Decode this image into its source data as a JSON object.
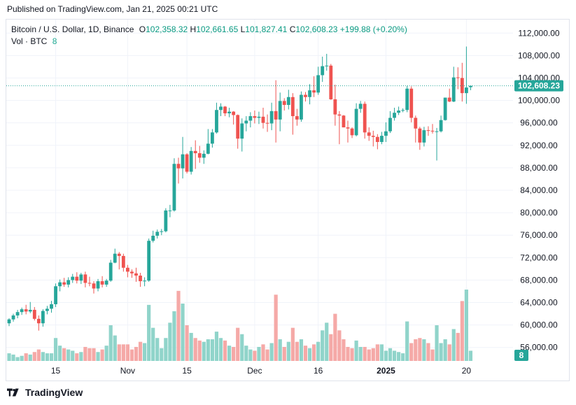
{
  "header": {
    "published": "Published on TradingView.com, Jan 21, 2025 00:21 UTC"
  },
  "legend": {
    "symbol": "Bitcoin / U.S. Dollar, 1D, Binance",
    "o_label": "O",
    "o": "102,358.32",
    "h_label": "H",
    "h": "102,661.65",
    "l_label": "L",
    "l": "101,827.41",
    "c_label": "C",
    "c": "102,608.23",
    "change": "+199.88 (+0.20%)",
    "vol_label": "Vol · BTC",
    "vol_value": "8"
  },
  "footer": {
    "brand": "TradingView"
  },
  "colors": {
    "up": "#26a69a",
    "down": "#ef5350",
    "vol_up": "#90d4ca",
    "vol_down": "#f5a9a7",
    "grid": "#f0f3fa",
    "price_line": "#26a69a"
  },
  "chart_data": {
    "type": "candlestick",
    "title": "Bitcoin / U.S. Dollar, 1D, Binance",
    "ylim": [
      53600,
      114400
    ],
    "y_ticks": [
      112000,
      108000,
      104000,
      100000,
      96000,
      92000,
      88000,
      84000,
      80000,
      76000,
      72000,
      68000,
      64000,
      60000,
      56000
    ],
    "y_tick_labels": [
      "112,000.00",
      "108,000.00",
      "104,000.00",
      "100,000.00",
      "96,000.00",
      "92,000.00",
      "88,000.00",
      "84,000.00",
      "80,000.00",
      "76,000.00",
      "72,000.00",
      "68,000.00",
      "64,000.00",
      "60,000.00",
      "56,000.00"
    ],
    "x_ticks": [
      {
        "label": "15",
        "index": 11
      },
      {
        "label": "Nov",
        "index": 28
      },
      {
        "label": "15",
        "index": 42
      },
      {
        "label": "Dec",
        "index": 58
      },
      {
        "label": "16",
        "index": 73
      },
      {
        "label": "2025",
        "index": 89
      },
      {
        "label": "20",
        "index": 108
      }
    ],
    "last_price_label": "102,608.23",
    "last_price": 102608.23,
    "last_volume_label": "8",
    "candles": [
      {
        "o": 60300,
        "h": 61200,
        "l": 59800,
        "c": 61000,
        "v": 6
      },
      {
        "o": 61000,
        "h": 62000,
        "l": 60600,
        "c": 61700,
        "v": 5
      },
      {
        "o": 61700,
        "h": 62700,
        "l": 61200,
        "c": 62300,
        "v": 3
      },
      {
        "o": 62300,
        "h": 63100,
        "l": 61800,
        "c": 62800,
        "v": 4
      },
      {
        "o": 62800,
        "h": 63600,
        "l": 61900,
        "c": 62400,
        "v": 6
      },
      {
        "o": 62400,
        "h": 64100,
        "l": 62100,
        "c": 62700,
        "v": 5
      },
      {
        "o": 62700,
        "h": 63200,
        "l": 60800,
        "c": 61100,
        "v": 7
      },
      {
        "o": 61100,
        "h": 61700,
        "l": 59000,
        "c": 60300,
        "v": 9
      },
      {
        "o": 60300,
        "h": 62800,
        "l": 59700,
        "c": 62500,
        "v": 7
      },
      {
        "o": 62500,
        "h": 63400,
        "l": 61900,
        "c": 62900,
        "v": 6
      },
      {
        "o": 62900,
        "h": 64300,
        "l": 62200,
        "c": 63700,
        "v": 6
      },
      {
        "o": 63700,
        "h": 67400,
        "l": 63200,
        "c": 66900,
        "v": 18
      },
      {
        "o": 66900,
        "h": 68100,
        "l": 66000,
        "c": 67600,
        "v": 12
      },
      {
        "o": 67600,
        "h": 68400,
        "l": 66800,
        "c": 67200,
        "v": 10
      },
      {
        "o": 67200,
        "h": 68500,
        "l": 66700,
        "c": 68000,
        "v": 9
      },
      {
        "o": 68000,
        "h": 69100,
        "l": 67500,
        "c": 68600,
        "v": 8
      },
      {
        "o": 68600,
        "h": 69400,
        "l": 67400,
        "c": 67900,
        "v": 6
      },
      {
        "o": 67900,
        "h": 69300,
        "l": 67300,
        "c": 69000,
        "v": 7
      },
      {
        "o": 69000,
        "h": 69500,
        "l": 66700,
        "c": 67500,
        "v": 11
      },
      {
        "o": 67500,
        "h": 68600,
        "l": 66900,
        "c": 67400,
        "v": 10
      },
      {
        "o": 67400,
        "h": 67800,
        "l": 65600,
        "c": 66500,
        "v": 10
      },
      {
        "o": 66500,
        "h": 68200,
        "l": 66000,
        "c": 67800,
        "v": 7
      },
      {
        "o": 67800,
        "h": 68700,
        "l": 66700,
        "c": 67200,
        "v": 9
      },
      {
        "o": 67200,
        "h": 68200,
        "l": 66800,
        "c": 67900,
        "v": 12
      },
      {
        "o": 67900,
        "h": 71600,
        "l": 67700,
        "c": 71100,
        "v": 28
      },
      {
        "o": 71100,
        "h": 73600,
        "l": 71000,
        "c": 72700,
        "v": 20
      },
      {
        "o": 72700,
        "h": 73000,
        "l": 69900,
        "c": 72300,
        "v": 13
      },
      {
        "o": 72300,
        "h": 72700,
        "l": 69500,
        "c": 70200,
        "v": 13
      },
      {
        "o": 70200,
        "h": 70700,
        "l": 68500,
        "c": 69500,
        "v": 13
      },
      {
        "o": 69500,
        "h": 69900,
        "l": 68400,
        "c": 69200,
        "v": 9
      },
      {
        "o": 69200,
        "h": 70200,
        "l": 67700,
        "c": 68800,
        "v": 11
      },
      {
        "o": 68800,
        "h": 69300,
        "l": 66800,
        "c": 67800,
        "v": 15
      },
      {
        "o": 67800,
        "h": 68500,
        "l": 66900,
        "c": 67900,
        "v": 14
      },
      {
        "o": 67900,
        "h": 75400,
        "l": 67700,
        "c": 75000,
        "v": 44
      },
      {
        "o": 75000,
        "h": 76800,
        "l": 74700,
        "c": 75900,
        "v": 26
      },
      {
        "o": 75900,
        "h": 77000,
        "l": 75400,
        "c": 76600,
        "v": 18
      },
      {
        "o": 76600,
        "h": 77100,
        "l": 76000,
        "c": 76700,
        "v": 10
      },
      {
        "o": 76700,
        "h": 80800,
        "l": 76500,
        "c": 80400,
        "v": 18
      },
      {
        "o": 80400,
        "h": 81400,
        "l": 79200,
        "c": 80400,
        "v": 30
      },
      {
        "o": 80400,
        "h": 89700,
        "l": 80200,
        "c": 88700,
        "v": 39
      },
      {
        "o": 88700,
        "h": 89800,
        "l": 85200,
        "c": 87900,
        "v": 55
      },
      {
        "o": 87900,
        "h": 93500,
        "l": 86100,
        "c": 90400,
        "v": 45
      },
      {
        "o": 90400,
        "h": 90600,
        "l": 87000,
        "c": 87300,
        "v": 28
      },
      {
        "o": 87300,
        "h": 91700,
        "l": 86800,
        "c": 91000,
        "v": 22
      },
      {
        "o": 91000,
        "h": 92900,
        "l": 87800,
        "c": 90600,
        "v": 18
      },
      {
        "o": 90600,
        "h": 91900,
        "l": 88900,
        "c": 89800,
        "v": 16
      },
      {
        "o": 89800,
        "h": 91100,
        "l": 88700,
        "c": 90500,
        "v": 15
      },
      {
        "o": 90500,
        "h": 94900,
        "l": 90400,
        "c": 92300,
        "v": 17
      },
      {
        "o": 92300,
        "h": 94900,
        "l": 91600,
        "c": 94300,
        "v": 17
      },
      {
        "o": 94300,
        "h": 99600,
        "l": 94100,
        "c": 98300,
        "v": 23
      },
      {
        "o": 98300,
        "h": 99500,
        "l": 97200,
        "c": 98900,
        "v": 18
      },
      {
        "o": 98900,
        "h": 99000,
        "l": 97200,
        "c": 97700,
        "v": 16
      },
      {
        "o": 97700,
        "h": 98700,
        "l": 97000,
        "c": 98000,
        "v": 12
      },
      {
        "o": 98000,
        "h": 98100,
        "l": 95700,
        "c": 97400,
        "v": 11
      },
      {
        "o": 97400,
        "h": 97500,
        "l": 91400,
        "c": 93200,
        "v": 26
      },
      {
        "o": 93200,
        "h": 96800,
        "l": 90900,
        "c": 95900,
        "v": 21
      },
      {
        "o": 95900,
        "h": 97200,
        "l": 94500,
        "c": 96400,
        "v": 12
      },
      {
        "o": 96400,
        "h": 97900,
        "l": 95200,
        "c": 97200,
        "v": 9
      },
      {
        "o": 97200,
        "h": 98200,
        "l": 95900,
        "c": 96900,
        "v": 8
      },
      {
        "o": 96900,
        "h": 98000,
        "l": 95800,
        "c": 97100,
        "v": 11
      },
      {
        "o": 97100,
        "h": 98700,
        "l": 95000,
        "c": 96000,
        "v": 13
      },
      {
        "o": 96000,
        "h": 97500,
        "l": 94400,
        "c": 95900,
        "v": 9
      },
      {
        "o": 95900,
        "h": 99600,
        "l": 94700,
        "c": 98100,
        "v": 14
      },
      {
        "o": 98100,
        "h": 103600,
        "l": 92500,
        "c": 96600,
        "v": 52
      },
      {
        "o": 96600,
        "h": 101400,
        "l": 94500,
        "c": 99900,
        "v": 17
      },
      {
        "o": 99900,
        "h": 100400,
        "l": 98200,
        "c": 99200,
        "v": 11
      },
      {
        "o": 99200,
        "h": 101900,
        "l": 98400,
        "c": 100600,
        "v": 15
      },
      {
        "o": 100600,
        "h": 101300,
        "l": 93900,
        "c": 97200,
        "v": 26
      },
      {
        "o": 97200,
        "h": 98500,
        "l": 95500,
        "c": 96600,
        "v": 15
      },
      {
        "o": 96600,
        "h": 101600,
        "l": 96200,
        "c": 101000,
        "v": 17
      },
      {
        "o": 101000,
        "h": 101500,
        "l": 99800,
        "c": 100600,
        "v": 12
      },
      {
        "o": 100600,
        "h": 102900,
        "l": 99300,
        "c": 101800,
        "v": 10
      },
      {
        "o": 101800,
        "h": 104300,
        "l": 100600,
        "c": 101400,
        "v": 13
      },
      {
        "o": 101400,
        "h": 106000,
        "l": 101000,
        "c": 104500,
        "v": 15
      },
      {
        "o": 104500,
        "h": 107800,
        "l": 103300,
        "c": 106100,
        "v": 24
      },
      {
        "o": 106100,
        "h": 108300,
        "l": 105300,
        "c": 106200,
        "v": 30
      },
      {
        "o": 106200,
        "h": 106500,
        "l": 100100,
        "c": 100200,
        "v": 21
      },
      {
        "o": 100200,
        "h": 102800,
        "l": 95500,
        "c": 97500,
        "v": 37
      },
      {
        "o": 97500,
        "h": 98100,
        "l": 92200,
        "c": 97300,
        "v": 24
      },
      {
        "o": 97300,
        "h": 97400,
        "l": 95200,
        "c": 95200,
        "v": 17
      },
      {
        "o": 95200,
        "h": 96400,
        "l": 92500,
        "c": 95000,
        "v": 11
      },
      {
        "o": 95000,
        "h": 95200,
        "l": 93300,
        "c": 93800,
        "v": 10
      },
      {
        "o": 93800,
        "h": 99500,
        "l": 93600,
        "c": 98500,
        "v": 16
      },
      {
        "o": 98500,
        "h": 99900,
        "l": 97800,
        "c": 99400,
        "v": 11
      },
      {
        "o": 99400,
        "h": 99800,
        "l": 93200,
        "c": 94300,
        "v": 11
      },
      {
        "o": 94300,
        "h": 95200,
        "l": 92800,
        "c": 93700,
        "v": 9
      },
      {
        "o": 93700,
        "h": 94600,
        "l": 91800,
        "c": 93500,
        "v": 10
      },
      {
        "o": 93500,
        "h": 94000,
        "l": 91300,
        "c": 92600,
        "v": 13
      },
      {
        "o": 92600,
        "h": 94400,
        "l": 92200,
        "c": 93700,
        "v": 13
      },
      {
        "o": 93700,
        "h": 96100,
        "l": 92600,
        "c": 94500,
        "v": 8
      },
      {
        "o": 94500,
        "h": 98100,
        "l": 94200,
        "c": 96900,
        "v": 10
      },
      {
        "o": 96900,
        "h": 98700,
        "l": 96400,
        "c": 97800,
        "v": 8
      },
      {
        "o": 97800,
        "h": 98900,
        "l": 97400,
        "c": 98200,
        "v": 7
      },
      {
        "o": 98200,
        "h": 98600,
        "l": 97900,
        "c": 98300,
        "v": 6
      },
      {
        "o": 98300,
        "h": 102600,
        "l": 97900,
        "c": 102100,
        "v": 31
      },
      {
        "o": 102100,
        "h": 102500,
        "l": 96100,
        "c": 96900,
        "v": 14
      },
      {
        "o": 96900,
        "h": 97300,
        "l": 92500,
        "c": 95000,
        "v": 17
      },
      {
        "o": 95000,
        "h": 95300,
        "l": 91200,
        "c": 92500,
        "v": 18
      },
      {
        "o": 92500,
        "h": 95300,
        "l": 91800,
        "c": 94700,
        "v": 17
      },
      {
        "o": 94700,
        "h": 95400,
        "l": 93700,
        "c": 94600,
        "v": 14
      },
      {
        "o": 94600,
        "h": 95800,
        "l": 94100,
        "c": 94500,
        "v": 9
      },
      {
        "o": 94500,
        "h": 95100,
        "l": 89300,
        "c": 94500,
        "v": 28
      },
      {
        "o": 94500,
        "h": 97300,
        "l": 94300,
        "c": 96500,
        "v": 14
      },
      {
        "o": 96500,
        "h": 100500,
        "l": 96400,
        "c": 100500,
        "v": 17
      },
      {
        "o": 100500,
        "h": 102100,
        "l": 99700,
        "c": 99800,
        "v": 13
      },
      {
        "o": 99800,
        "h": 106000,
        "l": 99700,
        "c": 104100,
        "v": 25
      },
      {
        "o": 104100,
        "h": 105900,
        "l": 102000,
        "c": 104000,
        "v": 22
      },
      {
        "o": 104000,
        "h": 106700,
        "l": 99800,
        "c": 101300,
        "v": 47
      },
      {
        "o": 101300,
        "h": 109600,
        "l": 99400,
        "c": 102300,
        "v": 56
      },
      {
        "o": 102358.32,
        "h": 102661.65,
        "l": 101827.41,
        "c": 102608.23,
        "v": 8
      }
    ]
  }
}
